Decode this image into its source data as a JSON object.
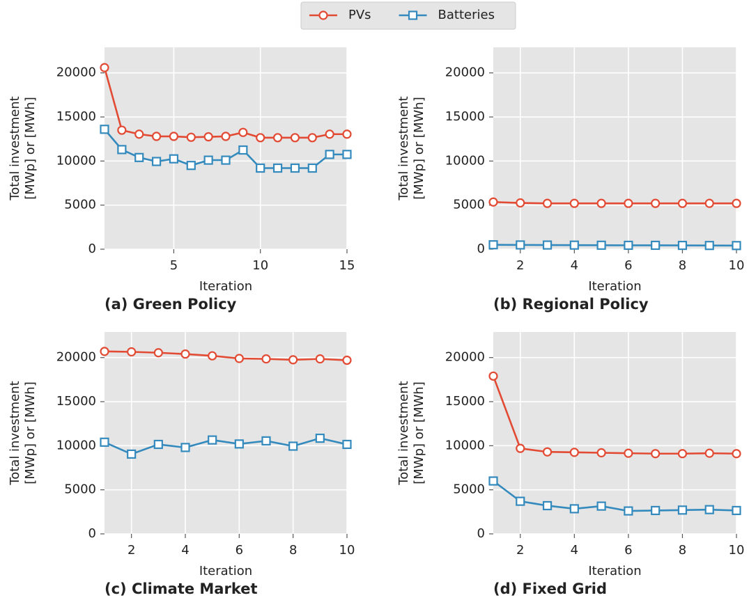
{
  "chart_data": [
    {
      "type": "line",
      "caption": "(a) Green Policy",
      "xlabel": "Iteration",
      "ylabel": [
        "Total investment",
        "[MWp] or [MWh]"
      ],
      "x": [
        1,
        2,
        3,
        4,
        5,
        6,
        7,
        8,
        9,
        10,
        11,
        12,
        13,
        14,
        15
      ],
      "series": [
        {
          "name": "PVs",
          "color": "#e24a33",
          "marker": "circle",
          "values": [
            20600,
            13500,
            13050,
            12800,
            12800,
            12700,
            12750,
            12800,
            13250,
            12650,
            12650,
            12650,
            12650,
            13050,
            13050
          ]
        },
        {
          "name": "Batteries",
          "color": "#348abd",
          "marker": "square",
          "values": [
            13600,
            11300,
            10400,
            9950,
            10250,
            9500,
            10100,
            10100,
            11250,
            9200,
            9200,
            9200,
            9200,
            10750,
            10750
          ]
        }
      ],
      "xlim": [
        1,
        15
      ],
      "xticks": [
        5,
        10,
        15
      ],
      "ylim": [
        0,
        22900
      ],
      "yticks": [
        0,
        5000,
        10000,
        15000,
        20000
      ],
      "grid": true
    },
    {
      "type": "line",
      "caption": "(b) Regional Policy",
      "xlabel": "Iteration",
      "ylabel": [
        "Total investment",
        "[MWp] or [MWh]"
      ],
      "x": [
        1,
        2,
        3,
        4,
        5,
        6,
        7,
        8,
        9,
        10
      ],
      "series": [
        {
          "color": "#e24a33",
          "marker": "circle",
          "values": [
            5350,
            5250,
            5200,
            5200,
            5200,
            5200,
            5200,
            5200,
            5200,
            5200
          ]
        },
        {
          "color": "#348abd",
          "marker": "square",
          "values": [
            500,
            480,
            470,
            460,
            450,
            440,
            440,
            430,
            420,
            410
          ]
        }
      ],
      "xlim": [
        1,
        10
      ],
      "xticks": [
        2,
        4,
        6,
        8,
        10
      ],
      "ylim": [
        0,
        22900
      ],
      "yticks": [
        0,
        5000,
        10000,
        15000,
        20000
      ],
      "grid": true
    },
    {
      "type": "line",
      "caption": "(c) Climate Market",
      "xlabel": "Iteration",
      "ylabel": [
        "Total investment",
        "[MWp] or [MWh]"
      ],
      "x": [
        1,
        2,
        3,
        4,
        5,
        6,
        7,
        8,
        9,
        10
      ],
      "series": [
        {
          "color": "#e24a33",
          "marker": "circle",
          "values": [
            20700,
            20650,
            20550,
            20400,
            20200,
            19900,
            19850,
            19750,
            19850,
            19700
          ]
        },
        {
          "color": "#348abd",
          "marker": "square",
          "values": [
            10400,
            9050,
            10150,
            9800,
            10650,
            10200,
            10550,
            9950,
            10850,
            10150
          ]
        }
      ],
      "xlim": [
        1,
        10
      ],
      "xticks": [
        2,
        4,
        6,
        8,
        10
      ],
      "ylim": [
        0,
        22900
      ],
      "yticks": [
        0,
        5000,
        10000,
        15000,
        20000
      ],
      "grid": true
    },
    {
      "type": "line",
      "caption": "(d) Fixed Grid",
      "xlabel": "Iteration",
      "ylabel": [
        "Total investment",
        "[MWp] or [MWh]"
      ],
      "x": [
        1,
        2,
        3,
        4,
        5,
        6,
        7,
        8,
        9,
        10
      ],
      "series": [
        {
          "color": "#e24a33",
          "marker": "circle",
          "values": [
            17900,
            9700,
            9300,
            9250,
            9200,
            9150,
            9100,
            9100,
            9150,
            9100
          ]
        },
        {
          "color": "#348abd",
          "marker": "square",
          "values": [
            6000,
            3700,
            3200,
            2850,
            3150,
            2600,
            2650,
            2700,
            2750,
            2650
          ]
        }
      ],
      "xlim": [
        1,
        10
      ],
      "xticks": [
        2,
        4,
        6,
        8,
        10
      ],
      "ylim": [
        0,
        22900
      ],
      "yticks": [
        0,
        5000,
        10000,
        15000,
        20000
      ],
      "grid": true
    }
  ]
}
